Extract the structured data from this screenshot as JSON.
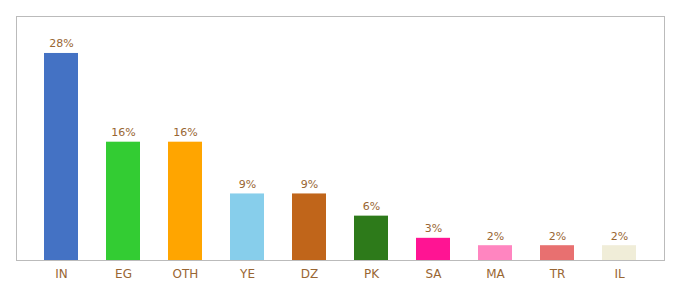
{
  "chart_data": {
    "type": "bar",
    "categories": [
      "IN",
      "EG",
      "OTH",
      "YE",
      "DZ",
      "PK",
      "SA",
      "MA",
      "TR",
      "IL"
    ],
    "values": [
      28,
      16,
      16,
      9,
      9,
      6,
      3,
      2,
      2,
      2
    ],
    "value_labels": [
      "28%",
      "16%",
      "16%",
      "9%",
      "9%",
      "6%",
      "3%",
      "2%",
      "2%",
      "2%"
    ],
    "colors": [
      "#4472C4",
      "#33CC33",
      "#FFA500",
      "#87CEEB",
      "#C0651A",
      "#2D7A1A",
      "#FF1493",
      "#FF85C0",
      "#E87070",
      "#F0EDD8"
    ],
    "ylim": [
      0,
      33
    ],
    "data_labels": true,
    "tick_labels": "x",
    "grid": false
  }
}
